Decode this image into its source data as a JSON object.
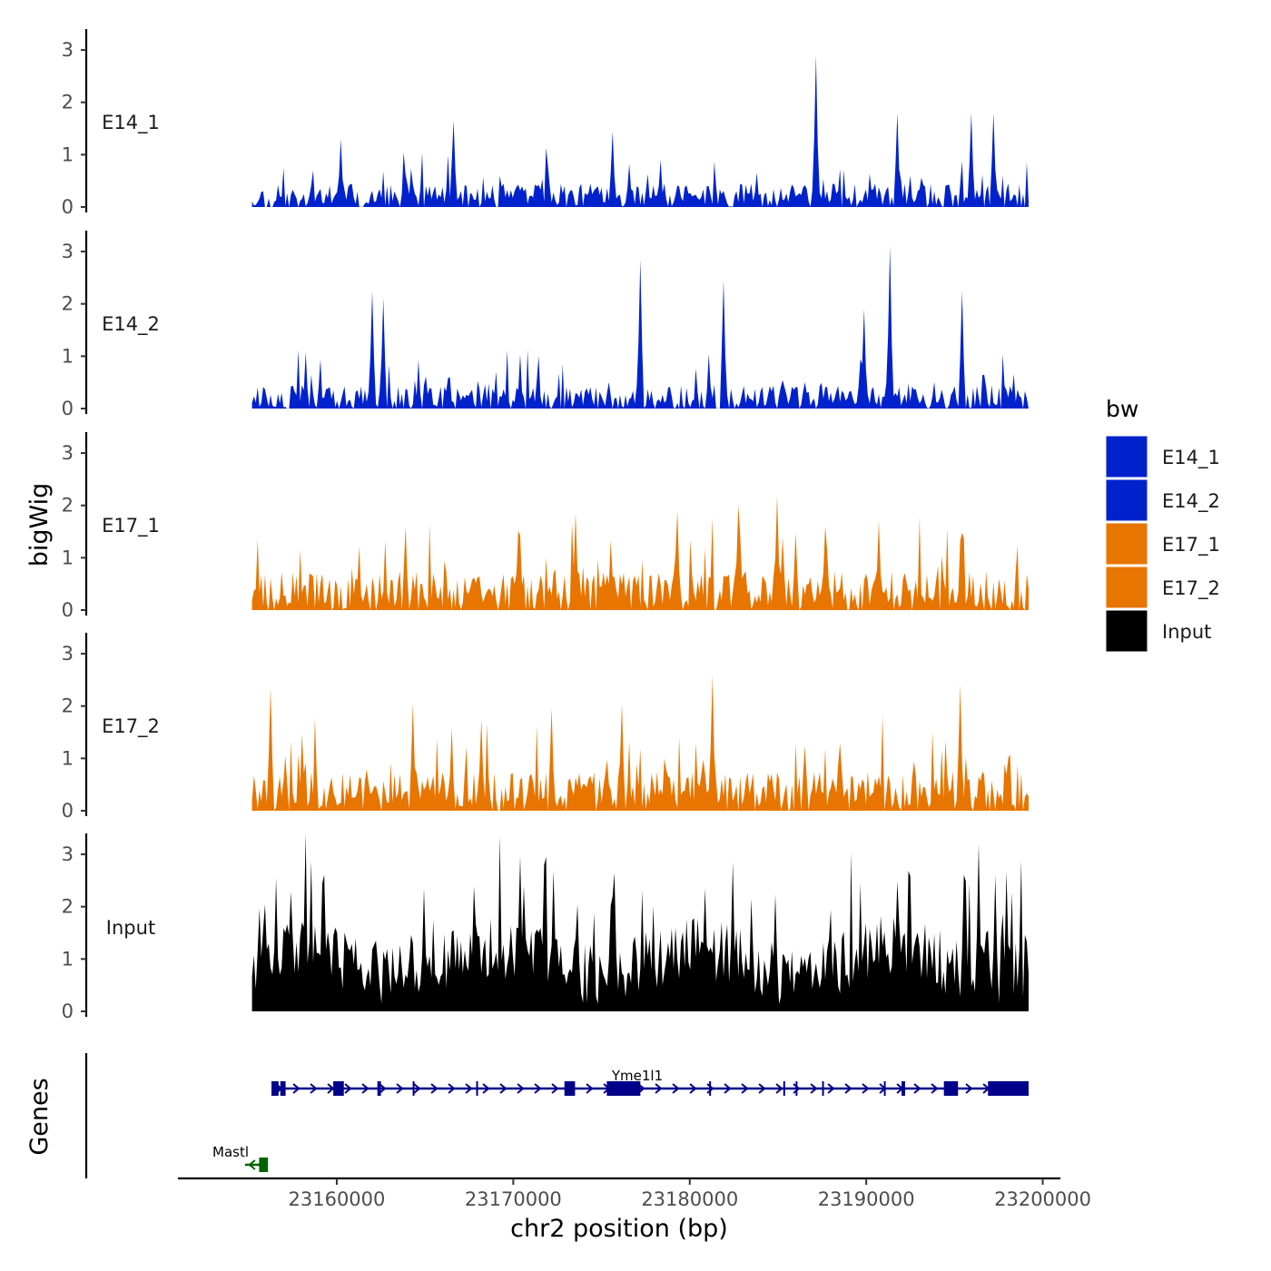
{
  "chart_data": {
    "type": "area",
    "xlabel": "chr2 position (bp)",
    "ylabel": "bigWig",
    "genes_axis_label": "Genes",
    "xlim": [
      23151000,
      23201000
    ],
    "x_ticks": [
      23160000,
      23170000,
      23180000,
      23190000,
      23200000
    ],
    "x_tick_labels": [
      "23160000",
      "23170000",
      "23180000",
      "23190000",
      "23200000"
    ],
    "ylim": [
      0,
      3.4
    ],
    "y_ticks": [
      0,
      1,
      2,
      3
    ],
    "y_tick_labels": [
      "0",
      "1",
      "2",
      "3"
    ],
    "data_x_range": [
      23155200,
      23199200
    ],
    "series": [
      {
        "name": "E14_1",
        "color": "#0022CC",
        "seed": 11,
        "base": 0.45,
        "values_note": "coverage profile",
        "peaks": [
          [
            23187100,
            2.9
          ],
          [
            23191800,
            1.8
          ],
          [
            23196000,
            1.8
          ],
          [
            23197200,
            1.8
          ],
          [
            23166600,
            1.65
          ],
          [
            23160200,
            1.3
          ],
          [
            23175600,
            1.45
          ]
        ]
      },
      {
        "name": "E14_2",
        "color": "#0022CC",
        "seed": 23,
        "base": 0.45,
        "peaks": [
          [
            23191300,
            3.1
          ],
          [
            23177200,
            2.85
          ],
          [
            23181900,
            2.45
          ],
          [
            23162000,
            2.25
          ],
          [
            23162600,
            2.1
          ],
          [
            23195400,
            2.25
          ],
          [
            23189900,
            1.9
          ]
        ]
      },
      {
        "name": "E17_1",
        "color": "#E87500",
        "seed": 37,
        "base": 0.75,
        "peaks": [
          [
            23184900,
            2.2
          ],
          [
            23182800,
            2.0
          ],
          [
            23179300,
            1.9
          ],
          [
            23173500,
            1.85
          ],
          [
            23187700,
            1.6
          ],
          [
            23163900,
            1.6
          ],
          [
            23190700,
            1.7
          ]
        ]
      },
      {
        "name": "E17_2",
        "color": "#E87500",
        "seed": 49,
        "base": 0.75,
        "peaks": [
          [
            23181300,
            2.6
          ],
          [
            23156200,
            2.35
          ],
          [
            23195300,
            2.4
          ],
          [
            23164300,
            2.05
          ],
          [
            23168200,
            1.75
          ],
          [
            23172200,
            1.95
          ],
          [
            23176200,
            2.05
          ]
        ]
      },
      {
        "name": "Input",
        "color": "#000000",
        "seed": 61,
        "base": 1.2,
        "peaks": [
          [
            23196400,
            3.2
          ],
          [
            23182400,
            2.85
          ],
          [
            23171800,
            2.8
          ],
          [
            23175700,
            2.65
          ],
          [
            23156600,
            2.55
          ],
          [
            23197300,
            2.6
          ],
          [
            23164900,
            2.35
          ]
        ]
      }
    ],
    "genes": [
      {
        "name": "Yme1l1",
        "strand": "+",
        "color": "#00008B",
        "start": 23156300,
        "end": 23199200,
        "exons": [
          [
            23156300,
            23156700
          ],
          [
            23156800,
            23157100
          ],
          [
            23159800,
            23160400
          ],
          [
            23162300,
            23162500
          ],
          [
            23164300,
            23164400
          ],
          [
            23167900,
            23168000
          ],
          [
            23172900,
            23173500
          ],
          [
            23175300,
            23177200
          ],
          [
            23181100,
            23181200
          ],
          [
            23185300,
            23185400
          ],
          [
            23186000,
            23186100
          ],
          [
            23187500,
            23187600
          ],
          [
            23191000,
            23191100
          ],
          [
            23192000,
            23192200
          ],
          [
            23194400,
            23195200
          ],
          [
            23196900,
            23199200
          ]
        ]
      },
      {
        "name": "Mastl",
        "strand": "-",
        "color": "#006400",
        "start": 23154800,
        "end": 23156100,
        "exons": [
          [
            23155600,
            23156100
          ]
        ]
      }
    ]
  },
  "legend": {
    "title": "bw",
    "items": [
      {
        "label": "E14_1",
        "color": "#0022CC"
      },
      {
        "label": "E14_2",
        "color": "#0022CC"
      },
      {
        "label": "E17_1",
        "color": "#E87500"
      },
      {
        "label": "E17_2",
        "color": "#E87500"
      },
      {
        "label": "Input",
        "color": "#000000"
      }
    ]
  }
}
